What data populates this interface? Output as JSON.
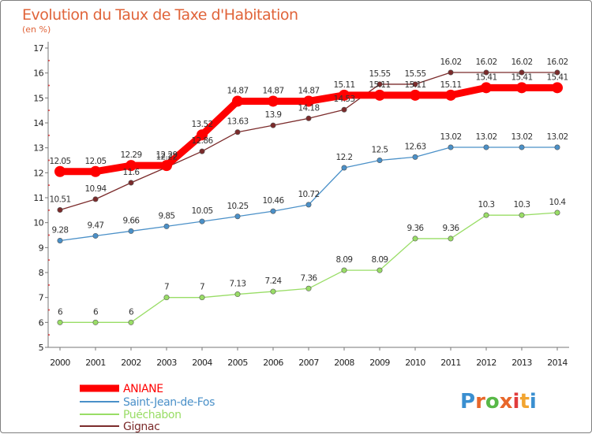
{
  "chart_data": {
    "type": "line",
    "title": "Evolution du Taux de Taxe d'Habitation",
    "subtitle": "(en %)",
    "x": [
      "2000",
      "2001",
      "2002",
      "2003",
      "2004",
      "2005",
      "2006",
      "2007",
      "2008",
      "2009",
      "2010",
      "2011",
      "2012",
      "2013",
      "2014"
    ],
    "ylim": [
      5,
      17
    ],
    "yticks": [
      "5",
      "6",
      "7",
      "8",
      "9",
      "10",
      "11",
      "12",
      "13",
      "14",
      "15",
      "16",
      "17"
    ],
    "grid": false,
    "legend": "bottom-left",
    "series": [
      {
        "name": "ANIANE",
        "color": "#ff0000",
        "values": [
          12.05,
          12.05,
          12.29,
          12.29,
          13.52,
          14.87,
          14.87,
          14.87,
          15.11,
          15.11,
          15.11,
          15.11,
          15.41,
          15.41,
          15.41
        ],
        "labels": [
          "12.05",
          "12.05",
          "12.29",
          "12.29",
          "13.52",
          "14.87",
          "14.87",
          "14.87",
          "15.11",
          "15.11",
          "15.11",
          "15.11",
          "15.41",
          "15.41",
          "15.41"
        ]
      },
      {
        "name": "Saint-Jean-de-Fos",
        "color": "#4a90c8",
        "values": [
          9.28,
          9.47,
          9.66,
          9.85,
          10.05,
          10.25,
          10.46,
          10.72,
          12.2,
          12.5,
          12.63,
          13.02,
          13.02,
          13.02,
          13.02
        ],
        "labels": [
          "9.28",
          "9.47",
          "9.66",
          "9.85",
          "10.05",
          "10.25",
          "10.46",
          "10.72",
          "12.2",
          "12.5",
          "12.63",
          "13.02",
          "13.02",
          "13.02",
          "13.02"
        ]
      },
      {
        "name": "Puéchabon",
        "color": "#99dd66",
        "values": [
          6,
          6,
          6,
          7,
          7,
          7.13,
          7.24,
          7.36,
          8.09,
          8.09,
          9.36,
          9.36,
          10.3,
          10.3,
          10.4
        ],
        "labels": [
          "6",
          "6",
          "6",
          "7",
          "7",
          "7.13",
          "7.24",
          "7.36",
          "8.09",
          "8.09",
          "9.36",
          "9.36",
          "10.3",
          "10.3",
          "10.4"
        ]
      },
      {
        "name": "Gignac",
        "color": "#7b2b2b",
        "values": [
          10.51,
          10.94,
          11.6,
          12.22,
          12.86,
          13.63,
          13.9,
          14.18,
          14.53,
          15.55,
          15.55,
          16.02,
          16.02,
          16.02,
          16.02
        ],
        "labels": [
          "10.51",
          "10.94",
          "11.6",
          "12.22",
          "12.86",
          "13.63",
          "13.9",
          "14.18",
          "14.53",
          "15.55",
          "15.55",
          "16.02",
          "16.02",
          "16.02",
          "16.02"
        ]
      }
    ]
  },
  "logo": {
    "letters": [
      "P",
      "r",
      "o",
      "x",
      "i",
      "t",
      "i"
    ],
    "colors": [
      "#3a8fd0",
      "#e8672a",
      "#58b847",
      "#e8672a",
      "#e03c3c",
      "#f2a531",
      "#3a8fd0"
    ]
  }
}
